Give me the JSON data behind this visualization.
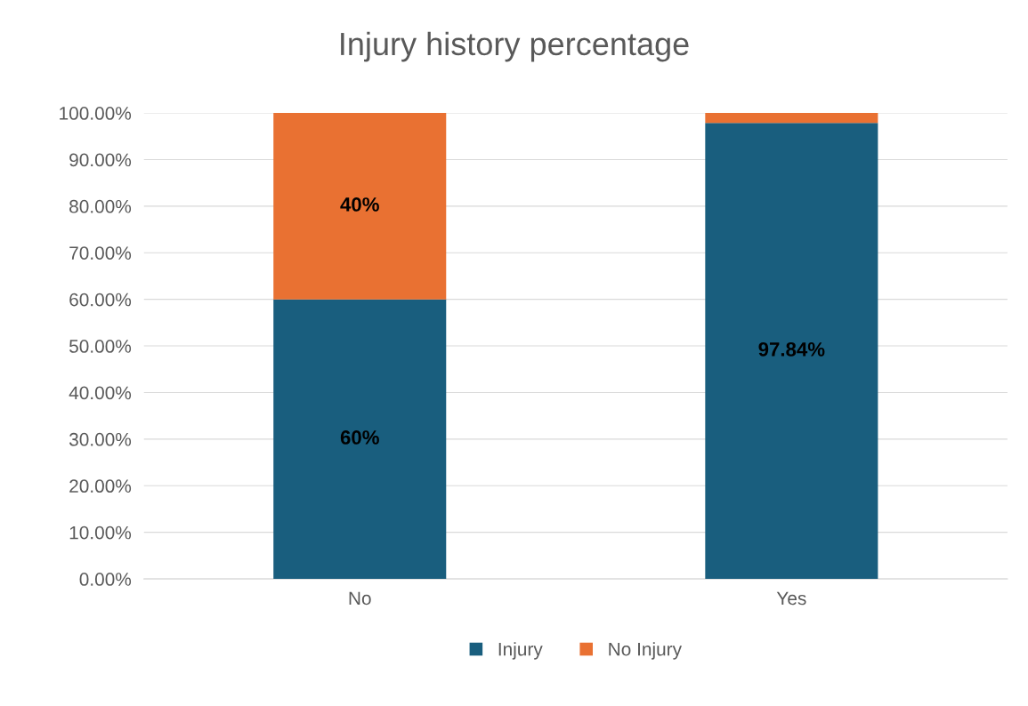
{
  "chart_data": {
    "type": "bar",
    "stacked": true,
    "title": "Injury history percentage",
    "categories": [
      "No",
      "Yes"
    ],
    "series": [
      {
        "name": "Injury",
        "color": "#195e7e",
        "values": [
          60,
          97.84
        ],
        "value_labels": [
          "60%",
          "97.84%"
        ]
      },
      {
        "name": "No Injury",
        "color": "#e97132",
        "values": [
          40,
          2.16
        ],
        "value_labels": [
          "40%",
          null
        ]
      }
    ],
    "ylim": [
      0,
      100
    ],
    "yticks": [
      {
        "value": 0,
        "label": "0.00%"
      },
      {
        "value": 10,
        "label": "10.00%"
      },
      {
        "value": 20,
        "label": "20.00%"
      },
      {
        "value": 30,
        "label": "30.00%"
      },
      {
        "value": 40,
        "label": "40.00%"
      },
      {
        "value": 50,
        "label": "50.00%"
      },
      {
        "value": 60,
        "label": "60.00%"
      },
      {
        "value": 70,
        "label": "70.00%"
      },
      {
        "value": 80,
        "label": "80.00%"
      },
      {
        "value": 90,
        "label": "90.00%"
      },
      {
        "value": 100,
        "label": "100.00%"
      }
    ],
    "grid": "y",
    "legend": "bottom"
  }
}
